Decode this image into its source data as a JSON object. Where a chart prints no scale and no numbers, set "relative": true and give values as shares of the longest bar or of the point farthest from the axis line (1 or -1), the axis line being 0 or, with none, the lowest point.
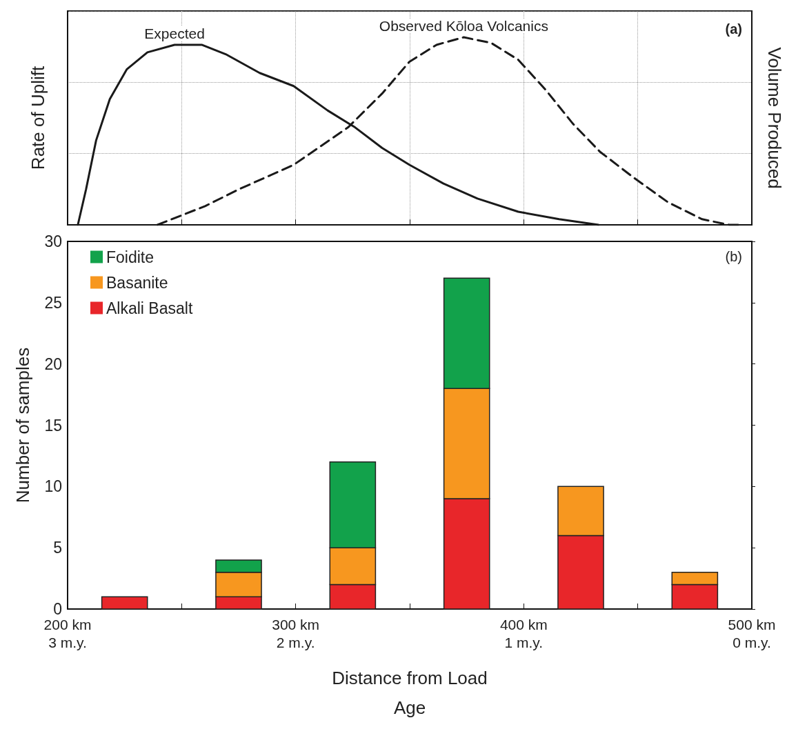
{
  "chart_data": [
    {
      "type": "line",
      "relative": true,
      "ylabel": "Rate of Uplift",
      "y2label": "Volume Produced",
      "annotations": [
        "(a)"
      ],
      "xlim": [
        200,
        500
      ],
      "xticks": [
        250,
        300,
        350,
        400,
        450
      ],
      "tick_labels": false,
      "grid": true,
      "series": [
        {
          "name": "Expected",
          "color": "#1a1a1a",
          "line_style": "solid",
          "x": [
            204.5,
            208.1,
            212.5,
            218.5,
            226,
            235,
            246.9,
            258.8,
            269.3,
            284.2,
            299.1,
            314,
            326,
            337.9,
            349.9,
            364.8,
            379.7,
            397.6,
            415.5,
            432.8
          ],
          "values": [
            0,
            0.19,
            0.45,
            0.67,
            0.83,
            0.92,
            0.96,
            0.96,
            0.91,
            0.81,
            0.74,
            0.61,
            0.52,
            0.41,
            0.32,
            0.22,
            0.14,
            0.07,
            0.03,
            0
          ]
        },
        {
          "name": "Observed Kōloa Volcanics",
          "color": "#1a1a1a",
          "line_style": "dashed",
          "x": [
            239.4,
            260.3,
            275.2,
            299.1,
            323,
            337.9,
            349.9,
            361.8,
            373.7,
            385.7,
            397.6,
            409.6,
            421.5,
            433.4,
            448.4,
            463.3,
            478.2,
            490.1,
            496
          ],
          "values": [
            0,
            0.1,
            0.19,
            0.32,
            0.52,
            0.7,
            0.87,
            0.96,
            1,
            0.97,
            0.88,
            0.72,
            0.54,
            0.39,
            0.25,
            0.12,
            0.03,
            0,
            0
          ]
        }
      ]
    },
    {
      "type": "bar",
      "stacked": true,
      "xlabel": "Distance from Load",
      "x2label": "Age",
      "ylabel": "Number of samples",
      "annotations": [
        "(b)"
      ],
      "x": [
        225,
        275,
        325,
        375,
        425,
        475
      ],
      "xlim": [
        200,
        500
      ],
      "xticks": [
        {
          "value": 200,
          "label": "200 km"
        },
        {
          "value": 250,
          "label": null
        },
        {
          "value": 300,
          "label": "300 km"
        },
        {
          "value": 350,
          "label": null
        },
        {
          "value": 400,
          "label": "400 km"
        },
        {
          "value": 450,
          "label": null
        },
        {
          "value": 500,
          "label": "500 km"
        }
      ],
      "x2lim": [
        3,
        0
      ],
      "x2ticks": [
        {
          "value": 3,
          "label": "3 m.y."
        },
        {
          "value": 2,
          "label": "2 m.y."
        },
        {
          "value": 1,
          "label": "1 m.y."
        },
        {
          "value": 0,
          "label": "0 m.y."
        }
      ],
      "ylim": [
        0,
        30
      ],
      "yticks": [
        0,
        5,
        10,
        15,
        20,
        25,
        30
      ],
      "grid": false,
      "legend": "top left",
      "series": [
        {
          "name": "Alkali Basalt",
          "color": "#e8262a",
          "values": [
            1,
            1,
            2,
            9,
            6,
            2
          ]
        },
        {
          "name": "Basanite",
          "color": "#f7971f",
          "values": [
            0,
            2,
            3,
            9,
            4,
            1
          ]
        },
        {
          "name": "Foidite",
          "color": "#12a24b",
          "values": [
            0,
            1,
            7,
            9,
            0,
            0
          ]
        }
      ]
    }
  ]
}
